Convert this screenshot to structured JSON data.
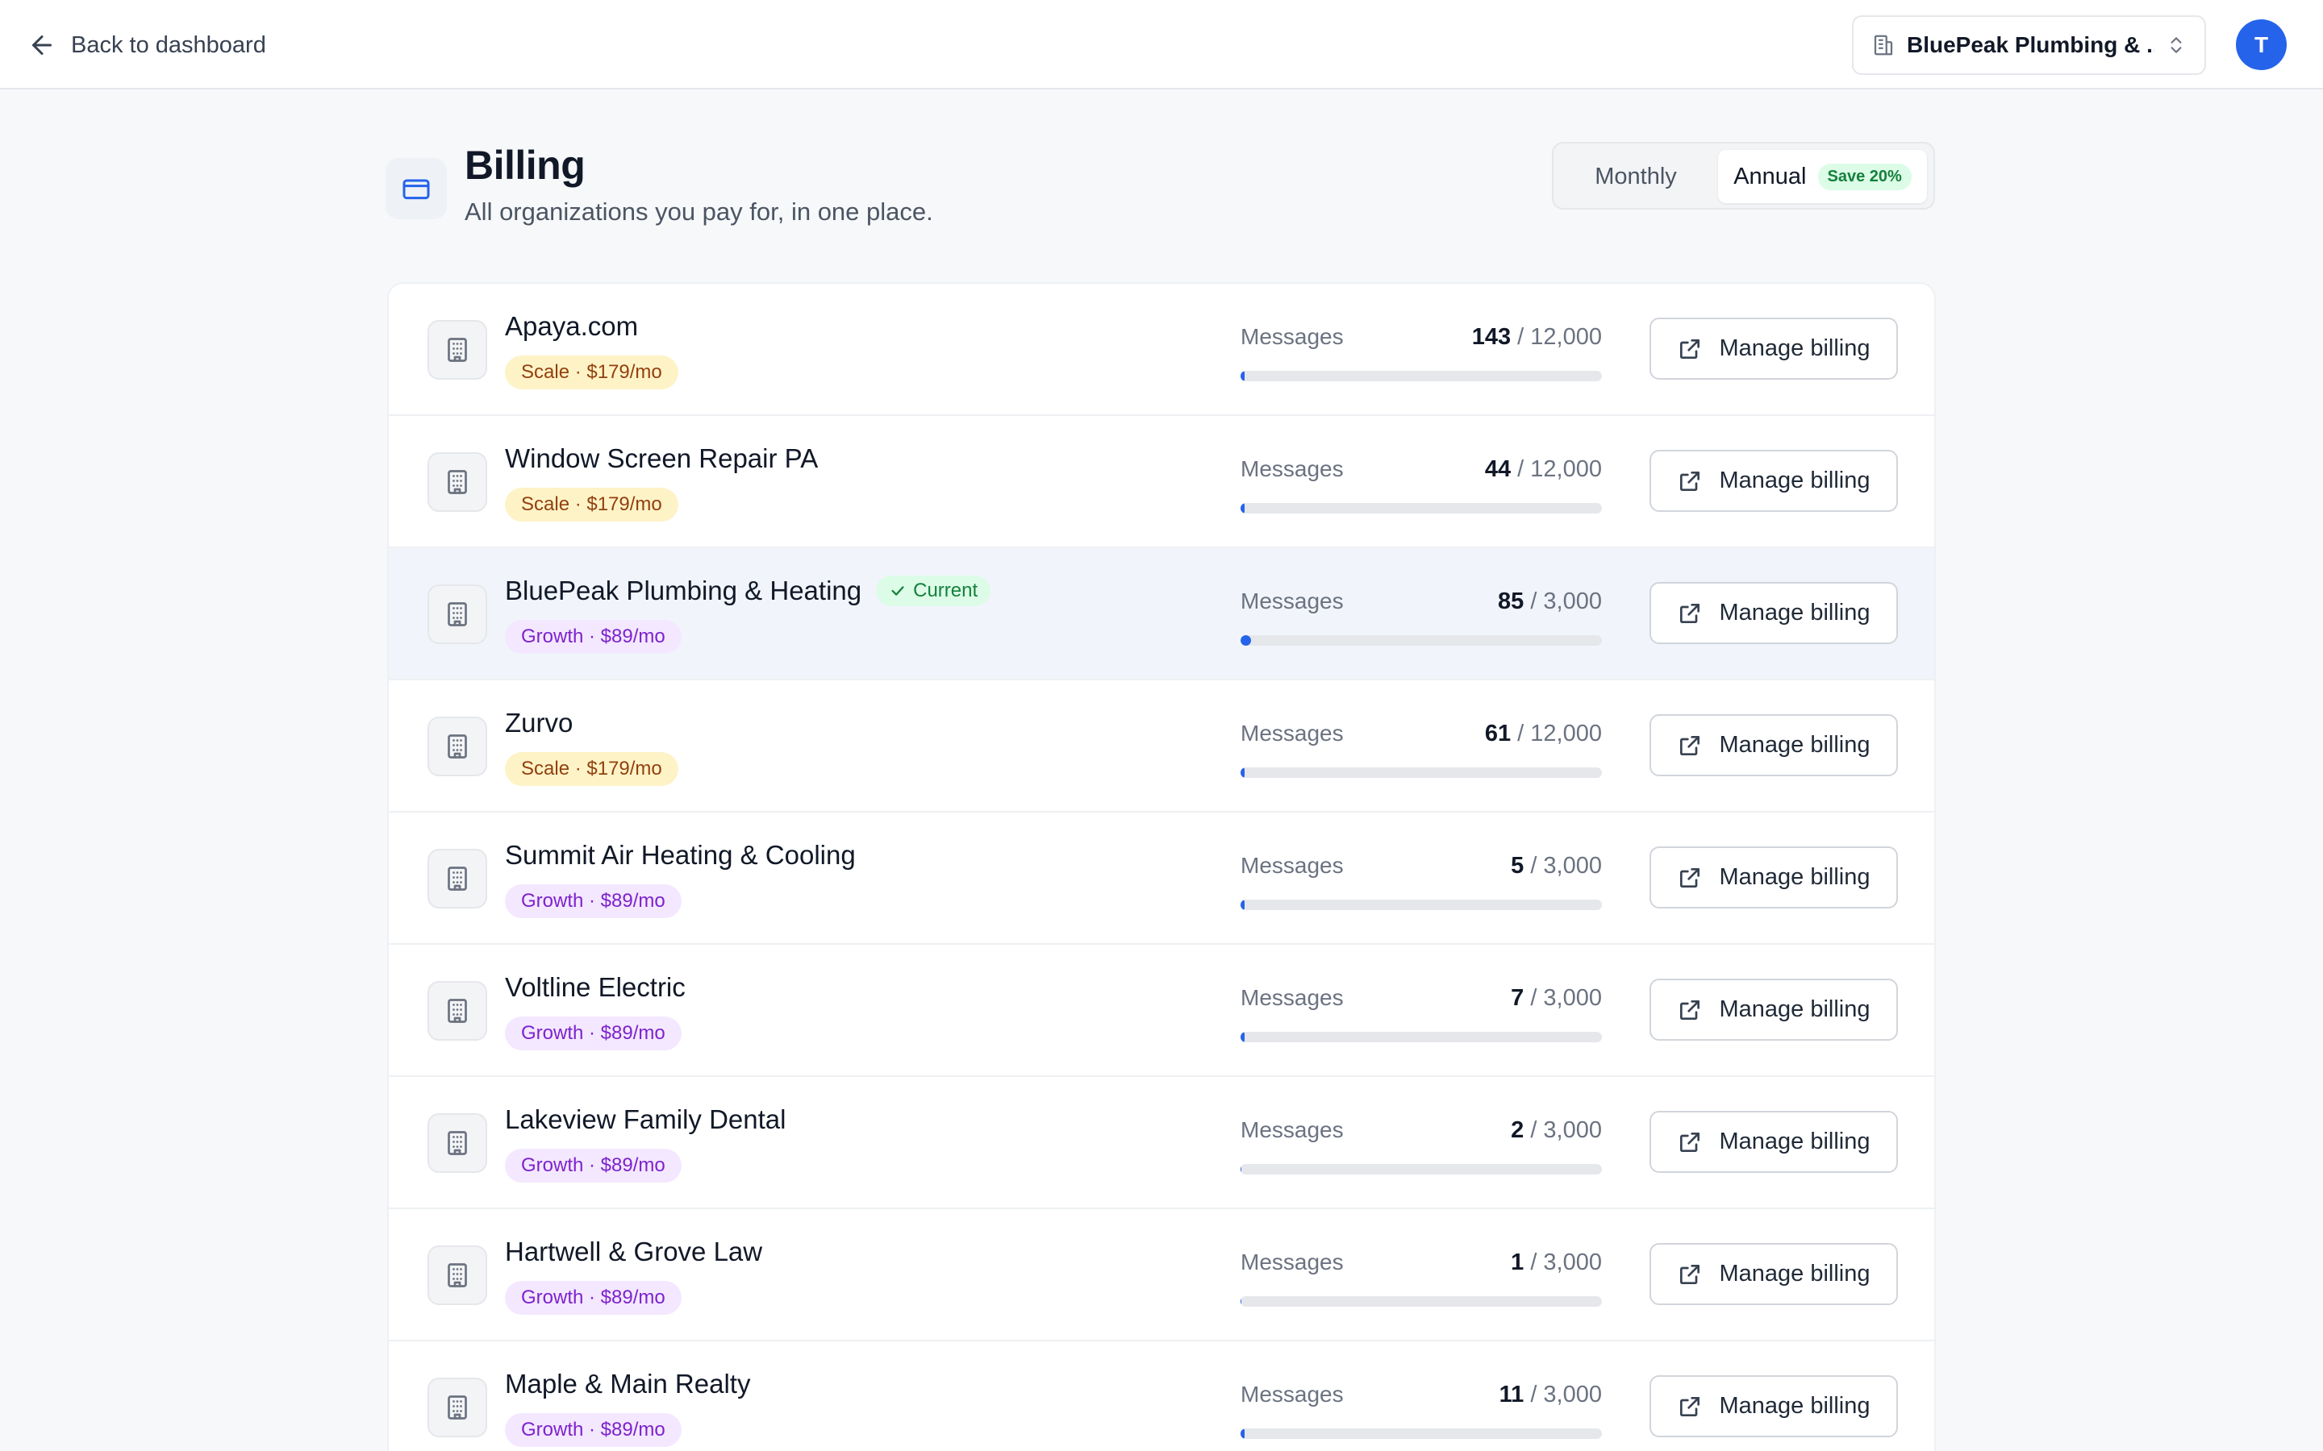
{
  "header": {
    "back_label": "Back to dashboard",
    "org_switcher": "BluePeak Plumbing & ...",
    "avatar_initial": "T"
  },
  "page": {
    "title": "Billing",
    "subtitle": "All organizations you pay for, in one place."
  },
  "billing_toggle": {
    "monthly": "Monthly",
    "annual": "Annual",
    "annual_badge": "Save 20%",
    "selected": "Annual"
  },
  "usage_label": "Messages",
  "manage_label": "Manage billing",
  "current_label": "Current",
  "organizations": [
    {
      "name": "Apaya.com",
      "plan": "Scale · $179/mo",
      "tier": "scale",
      "used": "143",
      "limit": "/ 12,000",
      "fraction": 0.012,
      "current": false
    },
    {
      "name": "Window Screen Repair PA",
      "plan": "Scale · $179/mo",
      "tier": "scale",
      "used": "44",
      "limit": "/ 12,000",
      "fraction": 0.004,
      "current": false
    },
    {
      "name": "BluePeak Plumbing & Heating",
      "plan": "Growth · $89/mo",
      "tier": "growth",
      "used": "85",
      "limit": "/ 3,000",
      "fraction": 0.028,
      "current": true
    },
    {
      "name": "Zurvo",
      "plan": "Scale · $179/mo",
      "tier": "scale",
      "used": "61",
      "limit": "/ 12,000",
      "fraction": 0.005,
      "current": false
    },
    {
      "name": "Summit Air Heating & Cooling",
      "plan": "Growth · $89/mo",
      "tier": "growth",
      "used": "5",
      "limit": "/ 3,000",
      "fraction": 0.002,
      "current": false
    },
    {
      "name": "Voltline Electric",
      "plan": "Growth · $89/mo",
      "tier": "growth",
      "used": "7",
      "limit": "/ 3,000",
      "fraction": 0.002,
      "current": false
    },
    {
      "name": "Lakeview Family Dental",
      "plan": "Growth · $89/mo",
      "tier": "growth",
      "used": "2",
      "limit": "/ 3,000",
      "fraction": 0.001,
      "current": false
    },
    {
      "name": "Hartwell & Grove Law",
      "plan": "Growth · $89/mo",
      "tier": "growth",
      "used": "1",
      "limit": "/ 3,000",
      "fraction": 0.0003,
      "current": false
    },
    {
      "name": "Maple & Main Realty",
      "plan": "Growth · $89/mo",
      "tier": "growth",
      "used": "11",
      "limit": "/ 3,000",
      "fraction": 0.004,
      "current": false
    }
  ],
  "colors": {
    "accent": "#2563eb",
    "scale_badge_bg": "#fef3c7",
    "growth_badge_bg": "#f3e8ff",
    "current_badge_bg": "#dcfce7"
  }
}
